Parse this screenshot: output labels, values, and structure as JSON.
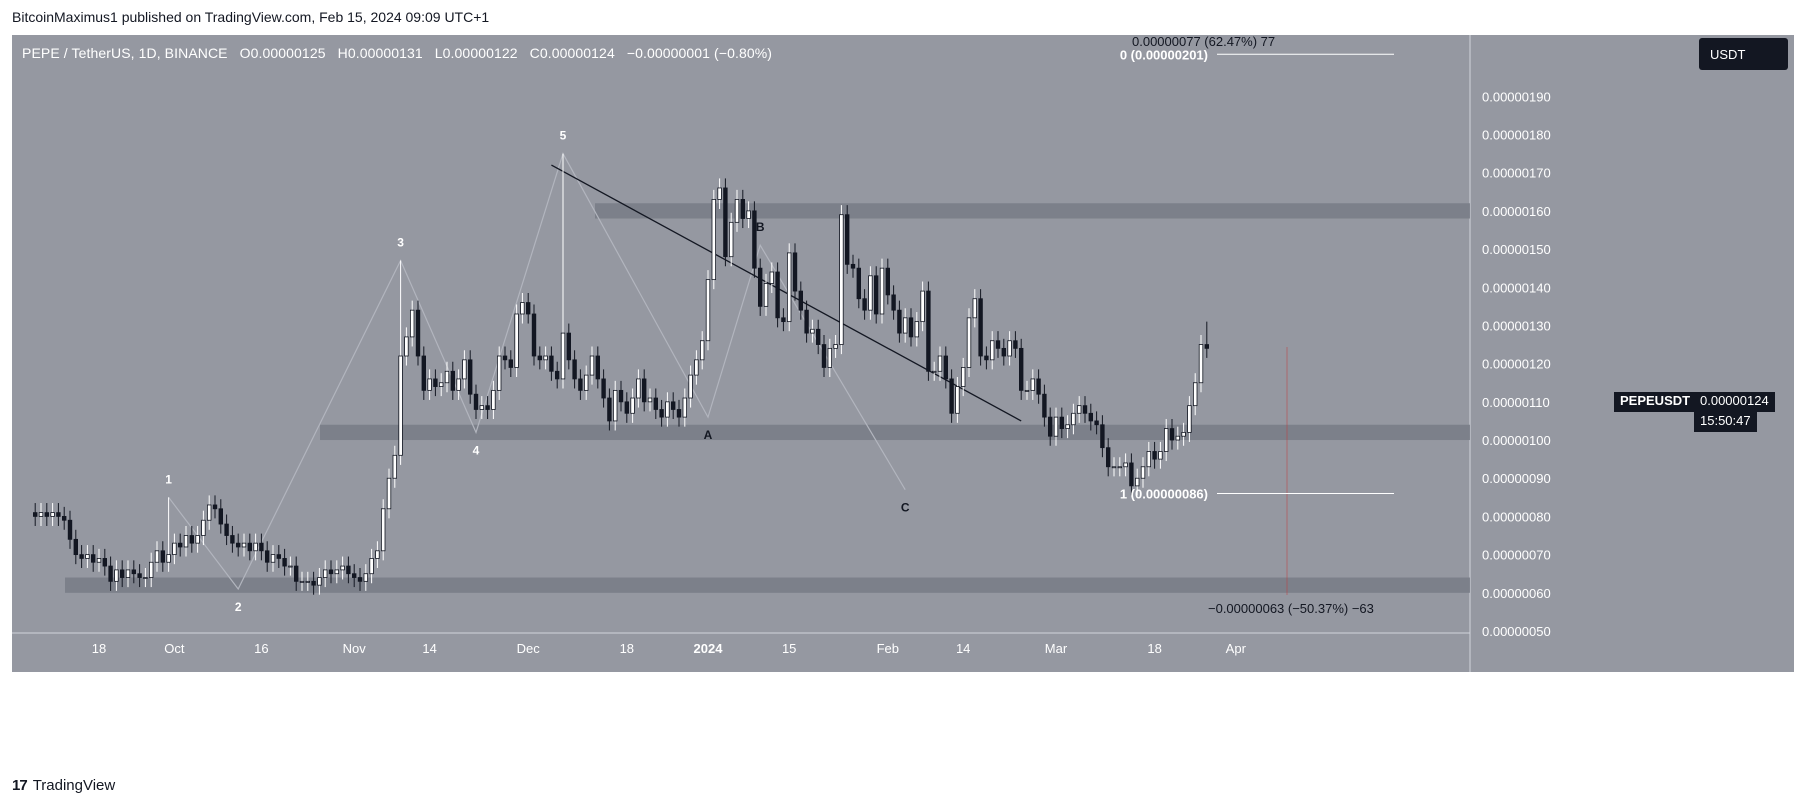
{
  "header": {
    "attribution": "BitcoinMaximus1 published on TradingView.com, Feb 15, 2024 09:09 UTC+1"
  },
  "legend": {
    "symbol": "PEPE / TetherUS, 1D, BINANCE",
    "o_key": "O",
    "o_val": "0.00000125",
    "h_key": "H",
    "h_val": "0.00000131",
    "l_key": "L",
    "l_val": "0.00000122",
    "c_key": "C",
    "c_val": "0.00000124",
    "change": "−0.00000001 (−0.80%)"
  },
  "currency_button": "USDT",
  "price_label": {
    "symbol": "PEPEUSDT",
    "price": "0.00000124",
    "countdown": "15:50:47"
  },
  "footer": {
    "logo_text": "TradingView",
    "logo_mark_icon": "tradingview-logo-icon"
  },
  "colors": {
    "plot_bg": "#9598a1",
    "zone": "#787b86",
    "up": "#ffffff",
    "down": "#131722",
    "trendline": "#131722",
    "wave": "#b2b5be",
    "label_white": "#ffffff",
    "label_dark": "#131722"
  },
  "chart_data": {
    "type": "candlestick",
    "title": "PEPE / TetherUS, 1D, BINANCE",
    "ylim": [
      5e-07,
      2.05e-06
    ],
    "yticks": [
      "0.00000190",
      "0.00000180",
      "0.00000170",
      "0.00000160",
      "0.00000150",
      "0.00000140",
      "0.00000130",
      "0.00000120",
      "0.00000110",
      "0.00000100",
      "0.00000090",
      "0.00000080",
      "0.00000070",
      "0.00000060",
      "0.00000050"
    ],
    "xticks": [
      {
        "label": "18",
        "date": "2023-09-18"
      },
      {
        "label": "Oct",
        "date": "2023-10-01"
      },
      {
        "label": "16",
        "date": "2023-10-16"
      },
      {
        "label": "Nov",
        "date": "2023-11-01"
      },
      {
        "label": "14",
        "date": "2023-11-14"
      },
      {
        "label": "Dec",
        "date": "2023-12-01"
      },
      {
        "label": "18",
        "date": "2023-12-18"
      },
      {
        "label": "2024",
        "date": "2024-01-01"
      },
      {
        "label": "15",
        "date": "2024-01-15"
      },
      {
        "label": "Feb",
        "date": "2024-02-01"
      },
      {
        "label": "14",
        "date": "2024-02-14"
      },
      {
        "label": "Mar",
        "date": "2024-03-01"
      },
      {
        "label": "18",
        "date": "2024-03-18"
      },
      {
        "label": "Apr",
        "date": "2024-04-01"
      }
    ],
    "anchor": {
      "date": "2023-09-06",
      "close": 8.1e-07
    },
    "closes": [
      8e-07,
      8.1e-07,
      8e-07,
      8.1e-07,
      8e-07,
      7.9e-07,
      7.4e-07,
      7e-07,
      6.9e-07,
      7e-07,
      6.8e-07,
      6.9e-07,
      6.7e-07,
      6.3e-07,
      6.6e-07,
      6.4e-07,
      6.6e-07,
      6.5e-07,
      6.4e-07,
      6.4e-07,
      6.8e-07,
      7.1e-07,
      6.8e-07,
      7e-07,
      7.3e-07,
      7.2e-07,
      7.5e-07,
      7.3e-07,
      7.5e-07,
      7.9e-07,
      8.3e-07,
      8.2e-07,
      7.8e-07,
      7.5e-07,
      7.3e-07,
      7.2e-07,
      7.3e-07,
      7.1e-07,
      7.3e-07,
      7.1e-07,
      6.8e-07,
      7e-07,
      6.9e-07,
      6.7e-07,
      6.7e-07,
      6.3e-07,
      6.3e-07,
      6.3e-07,
      6.2e-07,
      6.4e-07,
      6.6e-07,
      6.5e-07,
      6.6e-07,
      6.7e-07,
      6.5e-07,
      6.4e-07,
      6.3e-07,
      6.5e-07,
      6.9e-07,
      7.1e-07,
      8.2e-07,
      9e-07,
      9.6e-07,
      1.22e-06,
      1.27e-06,
      1.34e-06,
      1.22e-06,
      1.13e-06,
      1.16e-06,
      1.14e-06,
      1.15e-06,
      1.18e-06,
      1.13e-06,
      1.16e-06,
      1.21e-06,
      1.12e-06,
      1.08e-06,
      1.09e-06,
      1.08e-06,
      1.13e-06,
      1.22e-06,
      1.21e-06,
      1.19e-06,
      1.33e-06,
      1.36e-06,
      1.33e-06,
      1.22e-06,
      1.21e-06,
      1.22e-06,
      1.18e-06,
      1.16e-06,
      1.28e-06,
      1.21e-06,
      1.16e-06,
      1.13e-06,
      1.17e-06,
      1.22e-06,
      1.16e-06,
      1.11e-06,
      1.05e-06,
      1.13e-06,
      1.1e-06,
      1.07e-06,
      1.11e-06,
      1.16e-06,
      1.1e-06,
      1.11e-06,
      1.08e-06,
      1.06e-06,
      1.1e-06,
      1.08e-06,
      1.06e-06,
      1.11e-06,
      1.17e-06,
      1.21e-06,
      1.26e-06,
      1.42e-06,
      1.63e-06,
      1.66e-06,
      1.48e-06,
      1.57e-06,
      1.63e-06,
      1.58e-06,
      1.6e-06,
      1.45e-06,
      1.35e-06,
      1.41e-06,
      1.44e-06,
      1.32e-06,
      1.31e-06,
      1.49e-06,
      1.39e-06,
      1.34e-06,
      1.28e-06,
      1.29e-06,
      1.25e-06,
      1.19e-06,
      1.24e-06,
      1.25e-06,
      1.59e-06,
      1.46e-06,
      1.45e-06,
      1.37e-06,
      1.34e-06,
      1.43e-06,
      1.33e-06,
      1.45e-06,
      1.38e-06,
      1.34e-06,
      1.28e-06,
      1.32e-06,
      1.27e-06,
      1.31e-06,
      1.39e-06,
      1.18e-06,
      1.18e-06,
      1.22e-06,
      1.16e-06,
      1.07e-06,
      1.14e-06,
      1.19e-06,
      1.32e-06,
      1.37e-06,
      1.22e-06,
      1.21e-06,
      1.26e-06,
      1.24e-06,
      1.22e-06,
      1.26e-06,
      1.24e-06,
      1.13e-06,
      1.13e-06,
      1.16e-06,
      1.12e-06,
      1.06e-06,
      1.01e-06,
      1.06e-06,
      1.03e-06,
      1.04e-06,
      1.07e-06,
      1.09e-06,
      1.07e-06,
      1.05e-06,
      1.04e-06,
      9.8e-07,
      9.3e-07,
      9.3e-07,
      9.3e-07,
      9.4e-07,
      8.8e-07,
      9e-07,
      9.3e-07,
      9.7e-07,
      9.5e-07,
      9.7e-07,
      1.03e-06,
      1e-06,
      1.01e-06,
      1.02e-06,
      1.09e-06,
      1.15e-06,
      1.25e-06,
      1.24e-06
    ],
    "highs_extra": {
      "p5_high": 1.75e-06,
      "p3_high": 1.47e-06,
      "p1_high": 8.5e-07,
      "last_high": 1.31e-06
    },
    "support_zones": [
      {
        "from": 6e-07,
        "to": 6.4e-07
      },
      {
        "from": 1e-06,
        "to": 1.04e-06
      },
      {
        "from": 1.58e-06,
        "to": 1.62e-06
      }
    ],
    "trendline": {
      "start": {
        "date": "2023-12-05",
        "price": 1.72e-06
      },
      "end": {
        "date": "2024-02-24",
        "price": 1.05e-06
      }
    },
    "wave_labels": [
      {
        "label": "1",
        "date": "2023-09-30",
        "price": 8.5e-07
      },
      {
        "label": "2",
        "date": "2023-10-12",
        "price": 6.1e-07
      },
      {
        "label": "3",
        "date": "2023-11-09",
        "price": 1.47e-06
      },
      {
        "label": "4",
        "date": "2023-11-22",
        "price": 1.02e-06
      },
      {
        "label": "5",
        "date": "2023-12-07",
        "price": 1.75e-06
      },
      {
        "label": "A",
        "date": "2024-01-01",
        "price": 1.06e-06
      },
      {
        "label": "B",
        "date": "2024-01-10",
        "price": 1.51e-06
      },
      {
        "label": "C",
        "date": "2024-02-04",
        "price": 8.7e-07
      }
    ],
    "measure": {
      "upper_text": "0.00000077 (62.47%) 77",
      "level0_text": "0 (0.00000201)",
      "level0_price": 2.01e-06,
      "level1_text": "1 (0.00000086)",
      "level1_price": 8.6e-07,
      "lower_text": "−0.00000063 (−50.37%) −63"
    }
  }
}
